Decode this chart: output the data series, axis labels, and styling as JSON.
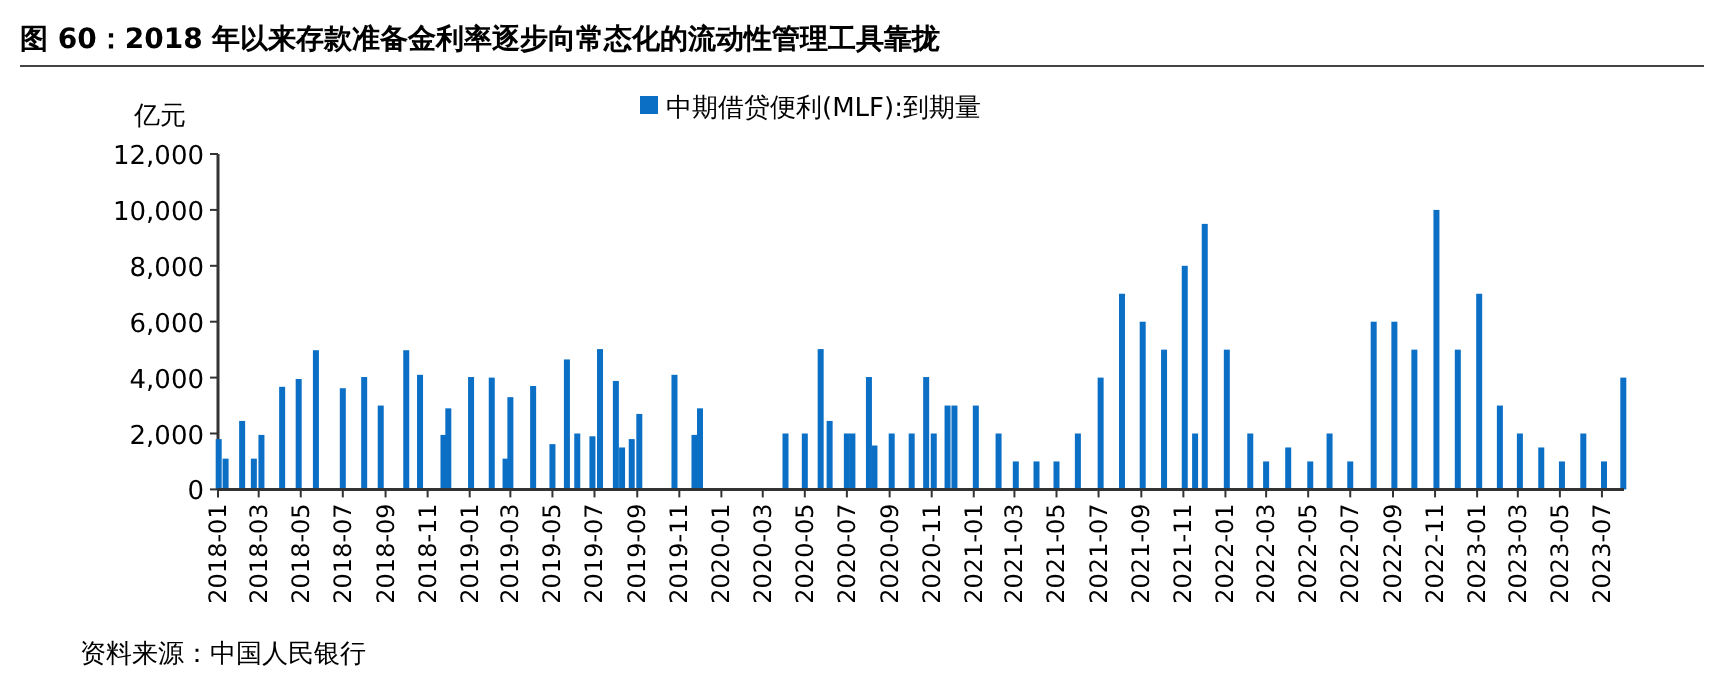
{
  "chart_data": {
    "type": "bar",
    "title": "图 60：2018 年以来存款准备金利率逐步向常态化的流动性管理工具靠拢",
    "ylabel": "亿元",
    "annotations": [
      "资料来源：中国人民银行"
    ],
    "legend": "top",
    "x": [
      "2018-01-02",
      "2018-01-12",
      "2018-02-05",
      "2018-02-22",
      "2018-03-05",
      "2018-04-04",
      "2018-04-28",
      "2018-05-23",
      "2018-07-01",
      "2018-08-01",
      "2018-08-25",
      "2018-10-01",
      "2018-10-21",
      "2018-11-24",
      "2018-12-01",
      "2019-01-03",
      "2019-02-02",
      "2019-02-22",
      "2019-03-01",
      "2019-04-03",
      "2019-05-01",
      "2019-05-22",
      "2019-06-06",
      "2019-06-28",
      "2019-07-09",
      "2019-08-01",
      "2019-08-10",
      "2019-08-24",
      "2019-09-04",
      "2019-10-25",
      "2019-11-23",
      "2019-12-01",
      "2020-04-03",
      "2020-05-01",
      "2020-05-24",
      "2020-06-06",
      "2020-07-01",
      "2020-07-09",
      "2020-08-02",
      "2020-08-10",
      "2020-09-04",
      "2020-10-03",
      "2020-10-24",
      "2020-11-04",
      "2020-11-24",
      "2020-12-04",
      "2021-01-04",
      "2021-02-06",
      "2021-03-03",
      "2021-04-02",
      "2021-05-01",
      "2021-06-01",
      "2021-07-04",
      "2021-08-04",
      "2021-09-03",
      "2021-10-04",
      "2021-11-03",
      "2021-11-18",
      "2021-12-02",
      "2022-01-03",
      "2022-02-06",
      "2022-03-01",
      "2022-04-02",
      "2022-05-04",
      "2022-06-01",
      "2022-07-01",
      "2022-08-04",
      "2022-09-03",
      "2022-10-02",
      "2022-11-03",
      "2022-12-04",
      "2023-01-04",
      "2023-02-03",
      "2023-03-04",
      "2023-04-04",
      "2023-05-04",
      "2023-06-04",
      "2023-07-04",
      "2023-08-01"
    ],
    "series": [
      {
        "name": "中期借贷便利(MLF):到期量",
        "color": "#0b6fc6",
        "values": [
          1800,
          1100,
          2450,
          1100,
          1950,
          3670,
          3950,
          4980,
          3620,
          4020,
          3000,
          4980,
          4100,
          1950,
          2900,
          4020,
          4000,
          1100,
          3300,
          3700,
          1620,
          4650,
          2000,
          1900,
          5020,
          3880,
          1500,
          1800,
          2700,
          4100,
          1950,
          2900,
          2000,
          2000,
          5020,
          2450,
          2000,
          2000,
          4020,
          1570,
          2000,
          2000,
          4020,
          2000,
          3000,
          3000,
          3000,
          2000,
          1000,
          1000,
          1000,
          2000,
          4000,
          7000,
          6000,
          5000,
          8000,
          2000,
          9500,
          5000,
          2000,
          1000,
          1500,
          1000,
          2000,
          1000,
          6000,
          6000,
          5000,
          10000,
          5000,
          7000,
          3000,
          2000,
          1500,
          1000,
          2000,
          1000,
          4000
        ]
      }
    ],
    "xlim": [
      "2018-01-01",
      "2023-08-02"
    ],
    "xticks": [
      "2018-01",
      "2018-03",
      "2018-05",
      "2018-07",
      "2018-09",
      "2018-11",
      "2019-01",
      "2019-03",
      "2019-05",
      "2019-07",
      "2019-09",
      "2019-11",
      "2020-01",
      "2020-03",
      "2020-05",
      "2020-07",
      "2020-09",
      "2020-11",
      "2021-01",
      "2021-03",
      "2021-05",
      "2021-07",
      "2021-09",
      "2021-11",
      "2022-01",
      "2022-03",
      "2022-05",
      "2022-07",
      "2022-09",
      "2022-11",
      "2023-01",
      "2023-03",
      "2023-05",
      "2023-07"
    ],
    "ylim": [
      0,
      12000
    ],
    "yticks": [
      0,
      {
        "value": 2000,
        "label": "2,000"
      },
      {
        "value": 4000,
        "label": "4,000"
      },
      {
        "value": 6000,
        "label": "6,000"
      },
      {
        "value": 8000,
        "label": "8,000"
      },
      {
        "value": 10000,
        "label": "10,000"
      },
      {
        "value": 12000,
        "label": "12,000"
      }
    ]
  }
}
